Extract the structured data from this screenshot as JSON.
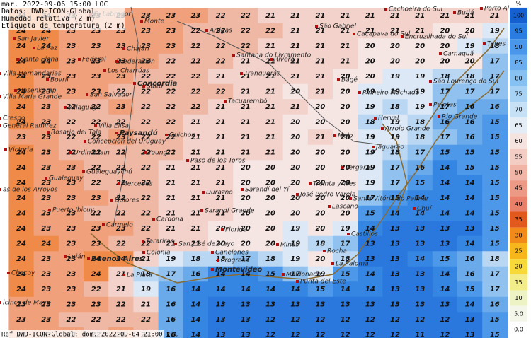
{
  "header": {
    "lines": [
      "mar. 2022-09-06 15:00 LOC",
      "Datos: DWD-ICON-Global",
      "Humedad relativa (2 m)",
      "Etiqueta de temperatura (2 m)"
    ]
  },
  "footer": "Ref DWD-ICON-Global: dom. 2022-09-04 21:00 LOC",
  "colorbar": {
    "unit": "%",
    "levels": [
      {
        "label": "100",
        "color": "#1560d0"
      },
      {
        "label": "95",
        "color": "#2a7de1"
      },
      {
        "label": "90",
        "color": "#4a96ea"
      },
      {
        "label": "85",
        "color": "#6aaef0"
      },
      {
        "label": "80",
        "color": "#86c1f2"
      },
      {
        "label": "75",
        "color": "#a7d2f4"
      },
      {
        "label": "70",
        "color": "#c6e0f5"
      },
      {
        "label": "65",
        "color": "#e4ecf5"
      },
      {
        "label": "60",
        "color": "#f5e3e0"
      },
      {
        "label": "55",
        "color": "#f3ccc4"
      },
      {
        "label": "50",
        "color": "#f0b5a6"
      },
      {
        "label": "45",
        "color": "#ec9a86"
      },
      {
        "label": "40",
        "color": "#e8806a"
      },
      {
        "label": "35",
        "color": "#e2591e"
      },
      {
        "label": "30",
        "color": "#f28a1a"
      },
      {
        "label": "25",
        "color": "#f6b61c"
      },
      {
        "label": "20",
        "color": "#f7d93a"
      },
      {
        "label": "15",
        "color": "#f3ec8a"
      },
      {
        "label": "10",
        "color": "#eef3c5"
      },
      {
        "label": "5.0",
        "color": "#f5f6ea"
      },
      {
        "label": "0.0",
        "color": "#ffffff"
      }
    ]
  },
  "grid": [
    [
      24,
      24,
      23,
      23,
      23,
      23,
      23,
      23,
      22,
      22,
      21,
      21,
      21,
      21,
      21,
      21,
      21,
      21,
      21,
      21
    ],
    [
      24,
      24,
      23,
      23,
      23,
      23,
      23,
      22,
      22,
      22,
      22,
      21,
      21,
      21,
      21,
      21,
      21,
      20,
      20,
      19
    ],
    [
      24,
      24,
      23,
      23,
      23,
      23,
      23,
      22,
      22,
      22,
      21,
      21,
      21,
      21,
      20,
      20,
      20,
      20,
      19,
      18
    ],
    [
      24,
      24,
      23,
      23,
      23,
      23,
      22,
      22,
      22,
      21,
      21,
      21,
      21,
      21,
      20,
      20,
      20,
      20,
      20,
      17
    ],
    [
      24,
      23,
      23,
      23,
      23,
      22,
      22,
      22,
      21,
      21,
      21,
      21,
      21,
      20,
      20,
      19,
      19,
      18,
      18,
      17
    ],
    [
      24,
      23,
      23,
      23,
      22,
      22,
      22,
      22,
      22,
      21,
      21,
      20,
      21,
      20,
      19,
      19,
      19,
      17,
      17,
      17
    ],
    [
      24,
      23,
      22,
      22,
      23,
      22,
      22,
      22,
      21,
      21,
      21,
      21,
      20,
      20,
      19,
      18,
      19,
      17,
      16,
      16
    ],
    [
      24,
      23,
      22,
      22,
      22,
      22,
      22,
      21,
      21,
      21,
      21,
      20,
      20,
      20,
      18,
      19,
      18,
      16,
      16,
      15
    ],
    [
      23,
      23,
      22,
      22,
      23,
      22,
      22,
      21,
      21,
      21,
      21,
      20,
      21,
      20,
      19,
      19,
      18,
      17,
      16,
      15
    ],
    [
      24,
      23,
      22,
      22,
      22,
      22,
      22,
      21,
      21,
      21,
      21,
      20,
      20,
      20,
      19,
      18,
      17,
      15,
      15,
      15
    ],
    [
      24,
      23,
      23,
      22,
      22,
      22,
      21,
      21,
      21,
      20,
      20,
      20,
      20,
      20,
      19,
      17,
      16,
      14,
      15,
      15
    ],
    [
      24,
      23,
      23,
      22,
      22,
      22,
      21,
      21,
      21,
      20,
      20,
      20,
      20,
      20,
      19,
      17,
      15,
      14,
      14,
      15
    ],
    [
      24,
      23,
      23,
      23,
      22,
      22,
      21,
      21,
      21,
      20,
      20,
      20,
      20,
      20,
      17,
      15,
      14,
      14,
      14,
      15
    ],
    [
      24,
      23,
      23,
      22,
      22,
      22,
      21,
      21,
      21,
      20,
      20,
      20,
      20,
      20,
      15,
      14,
      14,
      14,
      14,
      15
    ],
    [
      24,
      23,
      23,
      23,
      23,
      22,
      21,
      21,
      20,
      20,
      20,
      19,
      20,
      19,
      14,
      13,
      13,
      13,
      13,
      15
    ],
    [
      24,
      24,
      23,
      23,
      22,
      22,
      21,
      21,
      20,
      20,
      20,
      19,
      18,
      17,
      13,
      13,
      13,
      13,
      14,
      15
    ],
    [
      24,
      23,
      23,
      24,
      24,
      21,
      19,
      18,
      18,
      17,
      18,
      19,
      20,
      18,
      13,
      13,
      14,
      15,
      16,
      18
    ],
    [
      24,
      23,
      23,
      24,
      21,
      18,
      17,
      16,
      14,
      14,
      15,
      17,
      19,
      15,
      14,
      13,
      13,
      14,
      16,
      17
    ],
    [
      24,
      23,
      23,
      22,
      21,
      19,
      16,
      14,
      14,
      14,
      14,
      14,
      15,
      14,
      14,
      13,
      13,
      14,
      15,
      17
    ],
    [
      23,
      23,
      23,
      23,
      22,
      21,
      16,
      14,
      13,
      13,
      13,
      13,
      13,
      13,
      13,
      13,
      13,
      13,
      14,
      16
    ],
    [
      23,
      23,
      22,
      22,
      22,
      22,
      16,
      14,
      13,
      13,
      12,
      12,
      12,
      12,
      12,
      12,
      12,
      12,
      13,
      15
    ],
    [
      23,
      23,
      23,
      22,
      23,
      22,
      16,
      14,
      13,
      13,
      12,
      12,
      12,
      12,
      12,
      12,
      11,
      12,
      13,
      15
    ]
  ],
  "places": [
    "Monte",
    "G. Labrador",
    "Porto Al",
    "Cachoeira do Sul",
    "Butiá",
    "San Javier",
    "La Paz",
    "Santa Elena",
    "Federal",
    "Chajari",
    "Artigas",
    "São Gabriel",
    "Caçapava do Sul",
    "Encruzilhada do Sul",
    "Camaquã",
    "Tapes",
    "Santana do Livramento",
    "Rivera",
    "Villa Hernandarias",
    "Los Charrúas",
    "Federación",
    "Bovril",
    "Concordia",
    "Salto",
    "Tranqueras",
    "Bagé",
    "São Lourenço do Sul",
    "Hasenkamp",
    "Villa María Grande",
    "San Salvador",
    "Tacuarembó",
    "Pinheiro Machado",
    "Pelotas",
    "Rio Grande",
    "Villaguay",
    "Crespo",
    "General Ramírez",
    "Villa Elisa",
    "Herval",
    "Arroio Grande",
    "Rosario del Tala",
    "Paysandú",
    "Guichón",
    "Melo",
    "Concepción del Uruguay",
    "Victoria",
    "Jaguarão",
    "Urdinarrain",
    "Young",
    "Paso de los Toros",
    "Vergara",
    "Gualeguaychú",
    "Gualeguay",
    "Treinta y Tres",
    "Mercedes",
    "Sarandí del Yí",
    "as de los Arroyos",
    "Durazno",
    "José Pedro Varela",
    "Santa Vitória do Palmar",
    "Dolores",
    "Puerto Ibicuy",
    "Sarandí Grande",
    "Lascano",
    "Chuí",
    "Cardona",
    "Carmelo",
    "Florida",
    "Castillos",
    "Tarariras",
    "San José de Mayo",
    "Minas",
    "Rocha",
    "Canelones",
    "Luján",
    "Buenos Aires",
    "Colonia",
    "Progreso",
    "La Paloma",
    "Montevideo",
    "Maldonado",
    "Punta del Este",
    "Chacoy",
    "La Plata",
    "icinco de Mayo"
  ]
}
